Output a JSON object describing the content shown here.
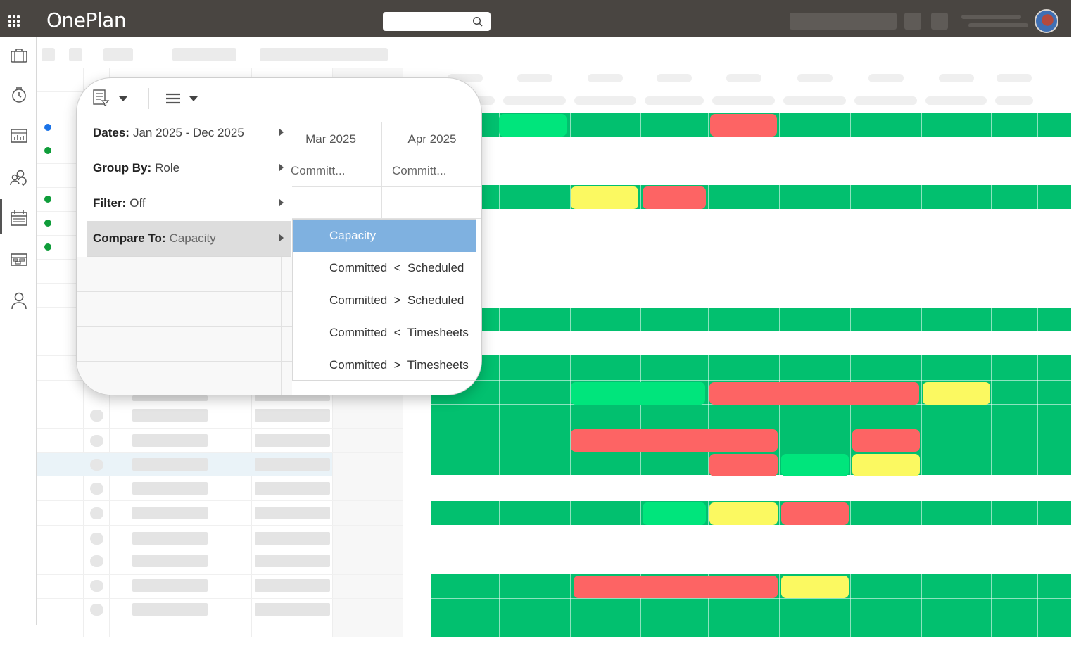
{
  "app": {
    "logo_text": "OnePlan",
    "brand_color": "#494541"
  },
  "icons": {
    "apps": "waffle-grid-icon",
    "search": "magnifier-icon",
    "nav": [
      "briefcase-icon",
      "clock-icon",
      "chart-icon",
      "people-icon",
      "calendar-icon",
      "board-icon",
      "person-icon"
    ]
  },
  "popup": {
    "months": [
      "Mar 2025",
      "Apr 2025"
    ],
    "commit_labels": [
      "Committ...",
      "Committ..."
    ],
    "menu": [
      {
        "key": "Dates:",
        "value": "Jan 2025 - Dec 2025"
      },
      {
        "key": "Group By:",
        "value": "Role"
      },
      {
        "key": "Filter:",
        "value": "Off"
      },
      {
        "key": "Compare To:",
        "value": "Capacity"
      }
    ],
    "submenu": [
      "Capacity",
      "Committed  <  Scheduled",
      "Committed  >  Scheduled",
      "Committed  <  Timesheets",
      "Committed  >  Timesheets"
    ]
  },
  "heatmap": {
    "colors": {
      "under": "#02c06f",
      "near": "#00e57c",
      "warning": "#fbf961",
      "over": "#fd6464"
    }
  }
}
